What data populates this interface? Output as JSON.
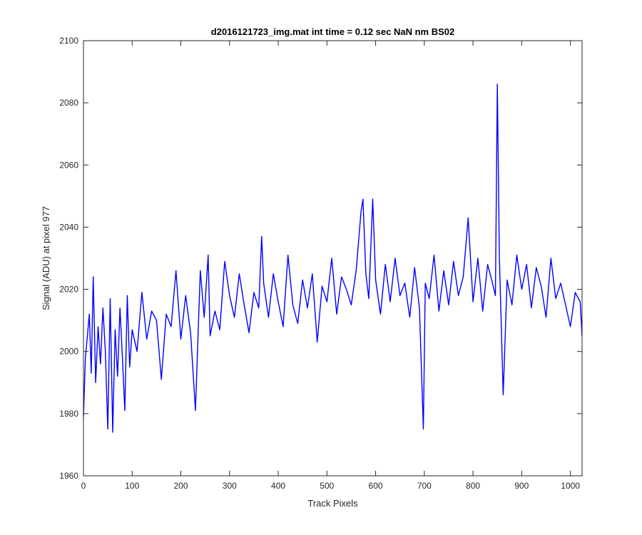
{
  "chart_data": {
    "type": "line",
    "title": "d2016121723_img.mat int time = 0.12 sec  NaN nm BS02",
    "xlabel": "Track Pixels",
    "ylabel": "Signal (ADU) at pixel 977",
    "xlim": [
      0,
      1024
    ],
    "ylim": [
      1960,
      2100
    ],
    "xticks": [
      0,
      100,
      200,
      300,
      400,
      500,
      600,
      700,
      800,
      900,
      1000
    ],
    "yticks": [
      1960,
      1980,
      2000,
      2020,
      2040,
      2060,
      2080,
      2100
    ],
    "grid": false,
    "line_color": "#0000ff",
    "series": [
      {
        "x": [
          0,
          4,
          8,
          12,
          16,
          20,
          25,
          30,
          35,
          40,
          45,
          50,
          55,
          60,
          65,
          70,
          75,
          80,
          85,
          90,
          95,
          100,
          110,
          120,
          130,
          140,
          150,
          160,
          170,
          180,
          190,
          200,
          210,
          220,
          230,
          240,
          248,
          256,
          260,
          270,
          280,
          290,
          300,
          310,
          320,
          330,
          340,
          350,
          360,
          366,
          370,
          380,
          390,
          400,
          410,
          420,
          430,
          440,
          450,
          460,
          470,
          480,
          490,
          500,
          510,
          520,
          530,
          540,
          550,
          560,
          570,
          574,
          580,
          586,
          594,
          600,
          610,
          620,
          630,
          640,
          650,
          660,
          670,
          680,
          690,
          698,
          702,
          710,
          720,
          730,
          740,
          750,
          760,
          770,
          780,
          790,
          800,
          810,
          820,
          830,
          840,
          846,
          850,
          854,
          862,
          870,
          880,
          890,
          900,
          910,
          920,
          930,
          940,
          950,
          960,
          970,
          980,
          990,
          1000,
          1010,
          1020,
          1024
        ],
        "y": [
          1979,
          1998,
          2005,
          2012,
          1993,
          2024,
          1990,
          2008,
          1996,
          2014,
          2000,
          1975,
          2017,
          1974,
          2007,
          1992,
          2014,
          1998,
          1981,
          2018,
          1995,
          2007,
          2000,
          2019,
          2004,
          2013,
          2010,
          1991,
          2012,
          2008,
          2026,
          2004,
          2018,
          2006,
          1981,
          2026,
          2011,
          2031,
          2005,
          2013,
          2007,
          2029,
          2018,
          2011,
          2025,
          2015,
          2006,
          2019,
          2014,
          2037,
          2022,
          2011,
          2025,
          2016,
          2008,
          2031,
          2015,
          2009,
          2023,
          2014,
          2025,
          2003,
          2021,
          2016,
          2030,
          2012,
          2024,
          2020,
          2015,
          2026,
          2045,
          2049,
          2025,
          2017,
          2049,
          2023,
          2012,
          2028,
          2016,
          2030,
          2018,
          2022,
          2011,
          2027,
          2014,
          1975,
          2022,
          2017,
          2031,
          2013,
          2026,
          2015,
          2029,
          2018,
          2024,
          2043,
          2016,
          2030,
          2013,
          2028,
          2022,
          2018,
          2086,
          2031,
          1986,
          2023,
          2015,
          2031,
          2020,
          2028,
          2014,
          2027,
          2021,
          2011,
          2030,
          2017,
          2022,
          2015,
          2008,
          2019,
          2016,
          2005
        ]
      }
    ]
  }
}
